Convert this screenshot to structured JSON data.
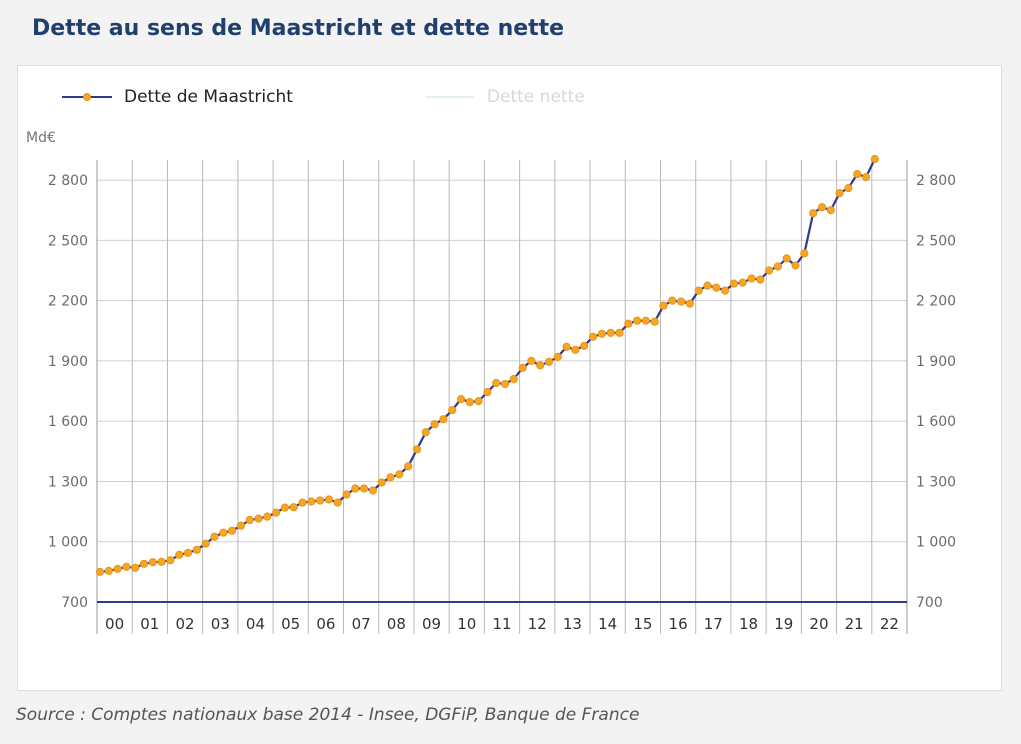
{
  "title": "Dette au sens de Maastricht et dette nette",
  "source": "Source : Comptes nationaux base 2014 - Insee, DGFiP, Banque de France",
  "chart_data": {
    "type": "line",
    "ylabel": "Md€",
    "ylim": [
      700,
      2900
    ],
    "yticks": [
      700,
      1000,
      1300,
      1600,
      1900,
      2200,
      2500,
      2800
    ],
    "ytick_labels": [
      "700",
      "1 000",
      "1 300",
      "1 600",
      "1 900",
      "2 200",
      "2 500",
      "2 800"
    ],
    "year_labels": [
      "00",
      "01",
      "02",
      "03",
      "04",
      "05",
      "06",
      "07",
      "08",
      "09",
      "10",
      "11",
      "12",
      "13",
      "14",
      "15",
      "16",
      "17",
      "18",
      "19",
      "20",
      "21",
      "22"
    ],
    "grid": true,
    "legend_position": "top-left",
    "series": [
      {
        "name": "Dette de Maastricht",
        "color": "#2e3a8c",
        "marker_color": "#f5a623",
        "visible": true,
        "x": [
          "2000-Q1",
          "2000-Q2",
          "2000-Q3",
          "2000-Q4",
          "2001-Q1",
          "2001-Q2",
          "2001-Q3",
          "2001-Q4",
          "2002-Q1",
          "2002-Q2",
          "2002-Q3",
          "2002-Q4",
          "2003-Q1",
          "2003-Q2",
          "2003-Q3",
          "2003-Q4",
          "2004-Q1",
          "2004-Q2",
          "2004-Q3",
          "2004-Q4",
          "2005-Q1",
          "2005-Q2",
          "2005-Q3",
          "2005-Q4",
          "2006-Q1",
          "2006-Q2",
          "2006-Q3",
          "2006-Q4",
          "2007-Q1",
          "2007-Q2",
          "2007-Q3",
          "2007-Q4",
          "2008-Q1",
          "2008-Q2",
          "2008-Q3",
          "2008-Q4",
          "2009-Q1",
          "2009-Q2",
          "2009-Q3",
          "2009-Q4",
          "2010-Q1",
          "2010-Q2",
          "2010-Q3",
          "2010-Q4",
          "2011-Q1",
          "2011-Q2",
          "2011-Q3",
          "2011-Q4",
          "2012-Q1",
          "2012-Q2",
          "2012-Q3",
          "2012-Q4",
          "2013-Q1",
          "2013-Q2",
          "2013-Q3",
          "2013-Q4",
          "2014-Q1",
          "2014-Q2",
          "2014-Q3",
          "2014-Q4",
          "2015-Q1",
          "2015-Q2",
          "2015-Q3",
          "2015-Q4",
          "2016-Q1",
          "2016-Q2",
          "2016-Q3",
          "2016-Q4",
          "2017-Q1",
          "2017-Q2",
          "2017-Q3",
          "2017-Q4",
          "2018-Q1",
          "2018-Q2",
          "2018-Q3",
          "2018-Q4",
          "2019-Q1",
          "2019-Q2",
          "2019-Q3",
          "2019-Q4",
          "2020-Q1",
          "2020-Q2",
          "2020-Q3",
          "2020-Q4",
          "2021-Q1",
          "2021-Q2",
          "2021-Q3",
          "2021-Q4",
          "2022-Q1"
        ],
        "values": [
          850,
          855,
          865,
          875,
          870,
          890,
          898,
          900,
          908,
          935,
          945,
          960,
          990,
          1025,
          1045,
          1055,
          1080,
          1108,
          1115,
          1125,
          1145,
          1170,
          1172,
          1195,
          1200,
          1205,
          1210,
          1195,
          1235,
          1265,
          1265,
          1255,
          1295,
          1320,
          1335,
          1375,
          1460,
          1545,
          1585,
          1610,
          1655,
          1710,
          1695,
          1700,
          1745,
          1790,
          1785,
          1810,
          1865,
          1900,
          1878,
          1895,
          1920,
          1970,
          1955,
          1975,
          2020,
          2035,
          2040,
          2040,
          2085,
          2100,
          2100,
          2095,
          2175,
          2200,
          2195,
          2185,
          2250,
          2275,
          2265,
          2250,
          2285,
          2290,
          2310,
          2305,
          2350,
          2370,
          2410,
          2375,
          2435,
          2635,
          2665,
          2650,
          2735,
          2760,
          2830,
          2815,
          2905
        ]
      },
      {
        "name": "Dette nette",
        "color": "#c9e6ee",
        "visible": false
      }
    ]
  }
}
